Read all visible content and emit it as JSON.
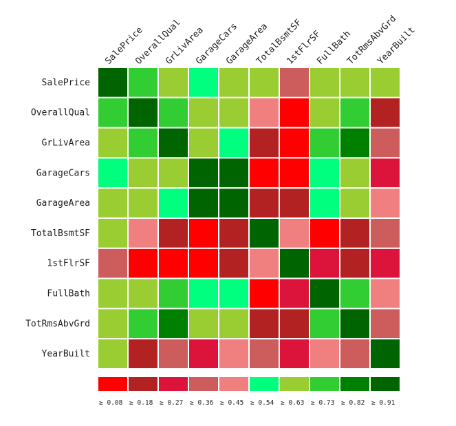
{
  "chart_data": {
    "type": "heatmap",
    "variables": [
      "SalePrice",
      "OverallQual",
      "GrLivArea",
      "GarageCars",
      "GarageArea",
      "TotalBsmtSF",
      "1stFlrSF",
      "FullBath",
      "TotRmsAbvGrd",
      "YearBuilt"
    ],
    "value_kind": "correlation bin index (0 = lowest bin ≥ 0.08, 9 = highest bin ≥ 0.91)",
    "matrix": [
      [
        9,
        7,
        6,
        5,
        6,
        6,
        3,
        6,
        6,
        6
      ],
      [
        7,
        9,
        7,
        6,
        6,
        4,
        0,
        6,
        7,
        1
      ],
      [
        6,
        7,
        9,
        6,
        5,
        1,
        0,
        7,
        8,
        3
      ],
      [
        5,
        6,
        6,
        9,
        9,
        0,
        0,
        5,
        6,
        2
      ],
      [
        6,
        6,
        5,
        9,
        9,
        1,
        1,
        5,
        6,
        4
      ],
      [
        6,
        4,
        1,
        0,
        1,
        9,
        4,
        0,
        1,
        3
      ],
      [
        3,
        0,
        0,
        0,
        1,
        4,
        9,
        2,
        1,
        2
      ],
      [
        6,
        6,
        7,
        5,
        5,
        0,
        2,
        9,
        7,
        4
      ],
      [
        6,
        7,
        8,
        6,
        6,
        1,
        1,
        7,
        9,
        3
      ],
      [
        6,
        1,
        3,
        2,
        4,
        3,
        2,
        4,
        3,
        9
      ]
    ],
    "legend": {
      "colors": [
        "#ff0000",
        "#b22222",
        "#dc143c",
        "#cd5c5c",
        "#f08080",
        "#00ff7f",
        "#9acd32",
        "#32cd32",
        "#008000",
        "#006400"
      ],
      "labels": [
        "≥ 0.08",
        "≥ 0.18",
        "≥ 0.27",
        "≥ 0.36",
        "≥ 0.45",
        "≥ 0.54",
        "≥ 0.63",
        "≥ 0.73",
        "≥ 0.82",
        "≥ 0.91"
      ]
    },
    "grid": true,
    "legend_position": "bottom"
  }
}
